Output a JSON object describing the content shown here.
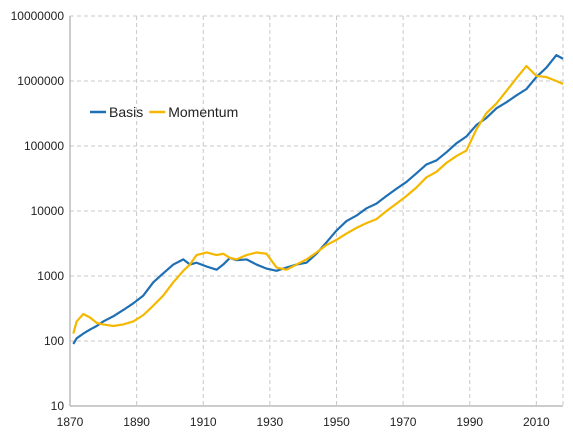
{
  "chart_data": {
    "type": "line",
    "title": "",
    "xlabel": "",
    "ylabel": "",
    "y_scale": "log",
    "xlim": [
      1870,
      2018
    ],
    "ylim": [
      10,
      10000000
    ],
    "x_ticks": [
      "1870",
      "1890",
      "1910",
      "1930",
      "1950",
      "1970",
      "1990",
      "2010"
    ],
    "y_ticks": [
      "10",
      "100",
      "1000",
      "10000",
      "100000",
      "1000000",
      "10000000"
    ],
    "grid": "dashed vertical and horizontal",
    "legend_position": "upper-left",
    "series": [
      {
        "name": "Basis",
        "color": "#1f6fb4",
        "x": [
          1871,
          1872,
          1874,
          1876,
          1878,
          1880,
          1883,
          1886,
          1889,
          1892,
          1895,
          1898,
          1901,
          1904,
          1906,
          1908,
          1911,
          1914,
          1916,
          1918,
          1920,
          1923,
          1926,
          1929,
          1932,
          1935,
          1938,
          1941,
          1944,
          1947,
          1950,
          1953,
          1956,
          1959,
          1962,
          1965,
          1968,
          1971,
          1974,
          1977,
          1980,
          1983,
          1986,
          1989,
          1992,
          1995,
          1998,
          2001,
          2004,
          2007,
          2010,
          2013,
          2016,
          2018
        ],
        "y": [
          90,
          110,
          130,
          150,
          170,
          200,
          240,
          300,
          380,
          500,
          800,
          1100,
          1500,
          1800,
          1500,
          1600,
          1400,
          1250,
          1500,
          1900,
          1750,
          1800,
          1500,
          1300,
          1200,
          1350,
          1500,
          1600,
          2200,
          3300,
          5000,
          7000,
          8500,
          11000,
          13000,
          17000,
          22000,
          28000,
          38000,
          52000,
          60000,
          80000,
          110000,
          140000,
          210000,
          270000,
          380000,
          470000,
          600000,
          750000,
          1150000,
          1600000,
          2500000,
          2200000
        ]
      },
      {
        "name": "Momentum",
        "color": "#f5b800",
        "x": [
          1871,
          1872,
          1874,
          1876,
          1878,
          1880,
          1883,
          1886,
          1889,
          1892,
          1895,
          1898,
          1901,
          1904,
          1906,
          1908,
          1911,
          1914,
          1916,
          1918,
          1920,
          1923,
          1926,
          1929,
          1932,
          1935,
          1938,
          1941,
          1944,
          1947,
          1950,
          1953,
          1956,
          1959,
          1962,
          1965,
          1968,
          1971,
          1974,
          1977,
          1980,
          1983,
          1986,
          1989,
          1992,
          1995,
          1998,
          2001,
          2004,
          2007,
          2010,
          2013,
          2016,
          2018
        ],
        "y": [
          130,
          200,
          260,
          230,
          190,
          180,
          170,
          180,
          200,
          250,
          350,
          500,
          800,
          1200,
          1500,
          2100,
          2300,
          2100,
          2200,
          1900,
          1800,
          2100,
          2300,
          2200,
          1350,
          1250,
          1500,
          1800,
          2300,
          3000,
          3600,
          4500,
          5500,
          6500,
          7500,
          10000,
          13000,
          17000,
          23000,
          33000,
          40000,
          55000,
          70000,
          85000,
          180000,
          320000,
          450000,
          700000,
          1100000,
          1700000,
          1200000,
          1150000,
          1000000,
          900000
        ]
      }
    ]
  }
}
